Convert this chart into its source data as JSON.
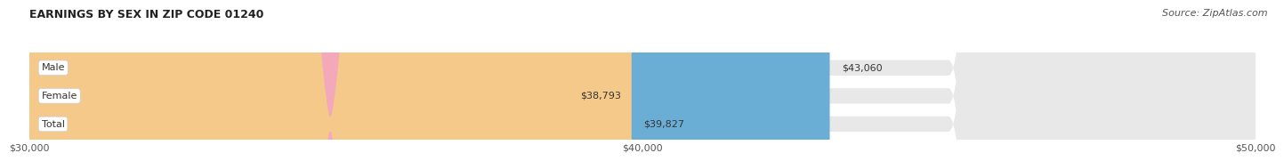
{
  "title": "EARNINGS BY SEX IN ZIP CODE 01240",
  "source": "Source: ZipAtlas.com",
  "categories": [
    "Male",
    "Female",
    "Total"
  ],
  "values": [
    43060,
    38793,
    39827
  ],
  "bar_colors": [
    "#6aaed6",
    "#f4a9bb",
    "#f5c98a"
  ],
  "track_color": "#e8e8e8",
  "value_labels": [
    "$43,060",
    "$38,793",
    "$39,827"
  ],
  "xlim_min": 30000,
  "xlim_max": 50000,
  "xticks": [
    30000,
    40000,
    50000
  ],
  "xtick_labels": [
    "$30,000",
    "$40,000",
    "$50,000"
  ],
  "title_fontsize": 9,
  "bar_fontsize": 8,
  "tick_fontsize": 8,
  "source_fontsize": 8
}
